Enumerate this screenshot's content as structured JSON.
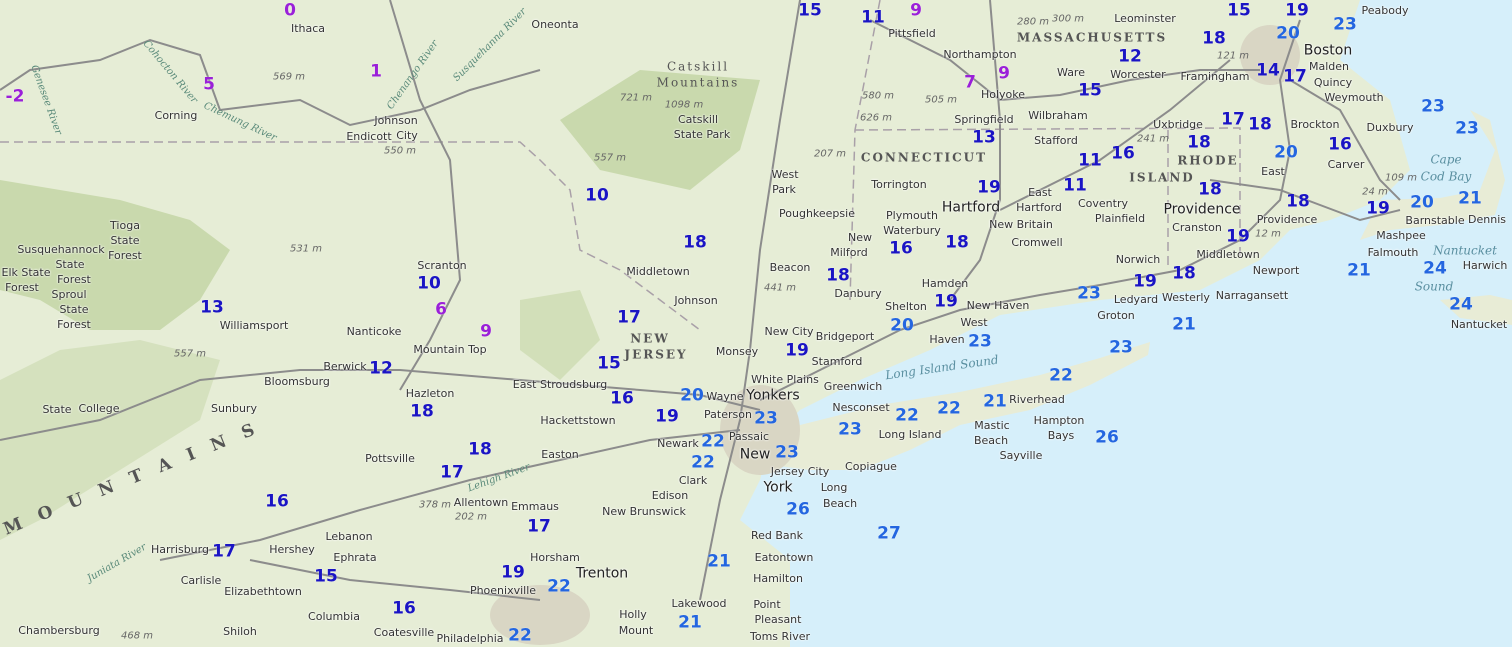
{
  "colors": {
    "land": "#e6edd6",
    "forest": "#c9d9ad",
    "water": "#d6effa",
    "urban": "#d9d6c4",
    "road": "#8c8c8c",
    "border": "#a9a0a8",
    "temp_cold": "#9a20d8",
    "temp_mid": "#1a14c4",
    "temp_warm": "#2466e0"
  },
  "temps": [
    -2,
    0,
    5,
    1,
    10,
    18,
    13,
    10,
    6,
    9,
    17,
    15,
    12,
    18,
    16,
    20,
    19,
    18,
    17,
    16,
    17,
    17,
    15,
    19,
    22,
    16,
    22,
    21,
    21,
    26,
    27,
    23,
    22,
    22,
    23,
    19,
    18,
    16,
    18,
    19,
    20,
    23,
    23,
    22,
    22,
    21,
    22,
    23,
    21,
    26,
    23,
    19,
    18,
    15,
    11,
    9,
    7,
    9,
    13,
    19,
    11,
    11,
    16,
    15,
    12,
    18,
    15,
    19,
    20,
    23,
    14,
    17,
    17,
    18,
    18,
    20,
    16,
    18,
    18,
    19,
    19,
    20,
    21,
    23,
    23,
    21,
    24,
    24
  ],
  "places": [
    "Ithaca",
    "Oneonta",
    "Corning",
    "Johnson",
    "City",
    "Endicott",
    "Williamsport",
    "Nanticoke",
    "Scranton",
    "Mountain Top",
    "Berwick",
    "Bloomsburg",
    "Sunbury",
    "Hazleton",
    "State",
    "College",
    "Pottsville",
    "Allentown",
    "Emmaus",
    "Easton",
    "Hackettstown",
    "East Stroudsburg",
    "Middletown",
    "Johnson",
    "Monsey",
    "Wayne",
    "Yonkers",
    "Paterson",
    "Passaic",
    "Newark",
    "Clark",
    "Edison",
    "New Brunswick",
    "Jersey City",
    "New",
    "York",
    "Long",
    "Beach",
    "Red Bank",
    "Eatontown",
    "Hamilton",
    "Lakewood",
    "Point",
    "Pleasant",
    "Toms River",
    "Mount",
    "Holly",
    "Trenton",
    "Horsham",
    "Phoenixville",
    "Philadelphia",
    "Coatesville",
    "Columbia",
    "Shiloh",
    "Elizabethtown",
    "Ephrata",
    "Lebanon",
    "Hershey",
    "Harrisburg",
    "Carlisle",
    "Chambersburg",
    "West",
    "Park",
    "Poughkeepsie",
    "New",
    "Milford",
    "Beacon",
    "Danbury",
    "New City",
    "White Plains",
    "Stamford",
    "Greenwich",
    "Bridgeport",
    "Shelton",
    "Hamden",
    "New Haven",
    "West",
    "Haven",
    "Waterbury",
    "Plymouth",
    "Torrington",
    "Hartford",
    "East",
    "Hartford",
    "New Britain",
    "Cromwell",
    "Pittsfield",
    "Northampton",
    "Holyoke",
    "Springfield",
    "Wilbraham",
    "Stafford",
    "Ware",
    "Worcester",
    "Leominster",
    "Framingham",
    "Uxbridge",
    "Coventry",
    "Plainfield",
    "Norwich",
    "Ledyard",
    "Groton",
    "Westerly",
    "Providence",
    "Cranston",
    "East",
    "Providence",
    "Middletown",
    "Newport",
    "Narragansett",
    "Boston",
    "Malden",
    "Peabody",
    "Quincy",
    "Weymouth",
    "Brockton",
    "Carver",
    "Duxbury",
    "Barnstable",
    "Mashpee",
    "Falmouth",
    "Dennis",
    "Harwich",
    "Nantucket",
    "Nesconset",
    "Long Island",
    "Riverhead",
    "Mastic",
    "Beach",
    "Hampton",
    "Bays",
    "Sayville",
    "Copiague",
    "Tioga",
    "State",
    "Forest",
    "Susquehannock",
    "State",
    "Forest",
    "Elk State",
    "Forest",
    "Sproul",
    "State",
    "Forest",
    "Catskill",
    "State Park"
  ],
  "states": [
    "MASSACHUSETTS",
    "CONNECTICUT",
    "RHODE",
    "ISLAND",
    "NEW",
    "JERSEY",
    "Catskill",
    "Mountains",
    "M O U N T A I N S"
  ],
  "waters": [
    "Long Island Sound",
    "Cape",
    "Cod Bay",
    "Nantucket",
    "Sound",
    "Cohocton River",
    "Chemung River",
    "Chenango River",
    "Susquehanna River",
    "Genesee River",
    "Juniata River",
    "Lehigh River"
  ],
  "elevations": [
    "569 m",
    "550 m",
    "531 m",
    "557 m",
    "721 m",
    "1098 m",
    "557 m",
    "441 m",
    "207 m",
    "580 m",
    "626 m",
    "505 m",
    "280 m",
    "300 m",
    "241 m",
    "121 m",
    "24 m",
    "109 m",
    "12 m",
    "378 m",
    "202 m",
    "468 m"
  ]
}
